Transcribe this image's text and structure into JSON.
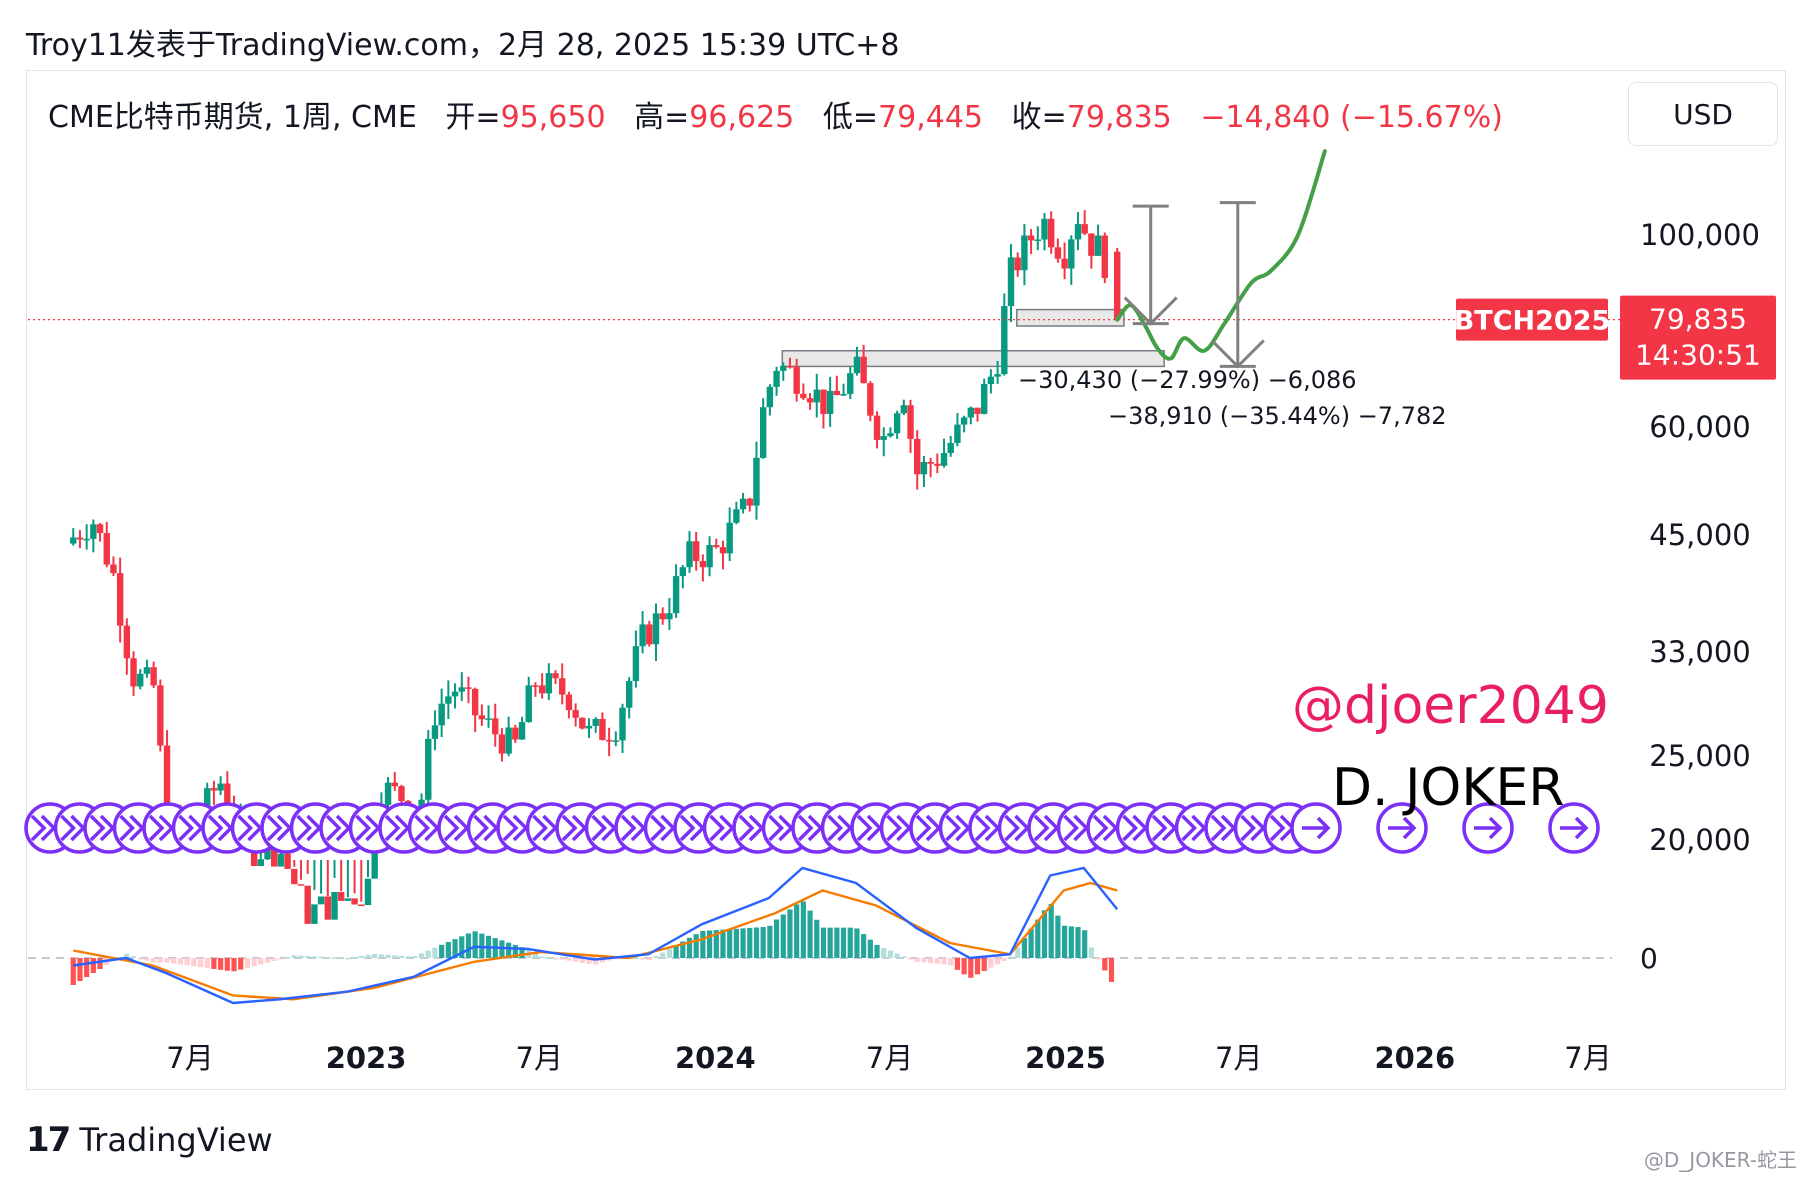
{
  "header": {
    "text": "Troy11发表于TradingView.com，2月 28, 2025 15:39 UTC+8"
  },
  "legend": {
    "symbol": "CME比特币期货, 1周, CME",
    "open_label": "开=",
    "open_value": "95,650",
    "high_label": "高=",
    "high_value": "96,625",
    "low_label": "低=",
    "low_value": "79,445",
    "close_label": "收=",
    "close_value": "79,835",
    "change": "−14,840 (−15.67%)"
  },
  "currency": "USD",
  "price_tag": {
    "symbol": "BTCH2025",
    "price": "79,835",
    "countdown": "14:30:51"
  },
  "annotations": {
    "measure1": "−30,430 (−27.99%) −6,086",
    "measure2": "−38,910 (−35.44%) −7,782"
  },
  "watermarks": {
    "user": "@djoer2049",
    "brand": "D. JOKER",
    "bottom": "@D_JOKER-蛇王"
  },
  "footer": {
    "logo_mark": "17",
    "logo_text": "TradingView"
  },
  "colors": {
    "up": "#089981",
    "down": "#f23645",
    "macd": "#2962ff",
    "signal": "#f57c00",
    "projection": "#43a047",
    "arrow": "#808080",
    "marker": "#7b2ff7",
    "zone": "#d1d4dc"
  },
  "chart_data": {
    "type": "candlestick",
    "y_scale": "log",
    "ylim": [
      17000,
      135000
    ],
    "y_ticks": [
      {
        "value": 100000,
        "label": "100,000"
      },
      {
        "value": 60000,
        "label": "60,000"
      },
      {
        "value": 45000,
        "label": "45,000"
      },
      {
        "value": 33000,
        "label": "33,000"
      },
      {
        "value": 25000,
        "label": "25,000"
      },
      {
        "value": 20000,
        "label": "20,000"
      }
    ],
    "x_ticks": [
      {
        "date": "2022-07-01",
        "label": "7月",
        "bold": false
      },
      {
        "date": "2023-01-01",
        "label": "2023",
        "bold": true
      },
      {
        "date": "2023-07-01",
        "label": "7月",
        "bold": false
      },
      {
        "date": "2024-01-01",
        "label": "2024",
        "bold": true
      },
      {
        "date": "2024-07-01",
        "label": "7月",
        "bold": false
      },
      {
        "date": "2025-01-01",
        "label": "2025",
        "bold": true
      },
      {
        "date": "2025-07-01",
        "label": "7月",
        "bold": false
      },
      {
        "date": "2026-01-01",
        "label": "2026",
        "bold": true
      },
      {
        "date": "2026-07-01",
        "label": "7月",
        "bold": false
      }
    ],
    "price_path": [
      [
        "2022-03-01",
        44000
      ],
      [
        "2022-03-28",
        47000
      ],
      [
        "2022-04-18",
        41000
      ],
      [
        "2022-05-09",
        31000
      ],
      [
        "2022-06-01",
        30000
      ],
      [
        "2022-06-13",
        21000
      ],
      [
        "2022-07-11",
        20500
      ],
      [
        "2022-08-08",
        23500
      ],
      [
        "2022-09-05",
        19500
      ],
      [
        "2022-10-10",
        19500
      ],
      [
        "2022-11-07",
        16500
      ],
      [
        "2022-12-12",
        17000
      ],
      [
        "2023-01-09",
        17500
      ],
      [
        "2023-01-23",
        23000
      ],
      [
        "2023-03-06",
        22000
      ],
      [
        "2023-03-20",
        28000
      ],
      [
        "2023-04-10",
        30000
      ],
      [
        "2023-05-08",
        27500
      ],
      [
        "2023-06-12",
        25500
      ],
      [
        "2023-07-03",
        30500
      ],
      [
        "2023-08-07",
        29500
      ],
      [
        "2023-08-28",
        26500
      ],
      [
        "2023-09-25",
        27000
      ],
      [
        "2023-10-23",
        34000
      ],
      [
        "2023-11-20",
        37500
      ],
      [
        "2023-12-11",
        42500
      ],
      [
        "2024-01-08",
        43000
      ],
      [
        "2024-02-12",
        49000
      ],
      [
        "2024-02-26",
        62000
      ],
      [
        "2024-03-11",
        71000
      ],
      [
        "2024-04-08",
        68000
      ],
      [
        "2024-05-06",
        63000
      ],
      [
        "2024-06-03",
        70000
      ],
      [
        "2024-07-01",
        58000
      ],
      [
        "2024-07-22",
        67000
      ],
      [
        "2024-08-05",
        53000
      ],
      [
        "2024-09-02",
        56000
      ],
      [
        "2024-10-07",
        63000
      ],
      [
        "2024-10-28",
        71000
      ],
      [
        "2024-11-11",
        90000
      ],
      [
        "2024-12-02",
        99000
      ],
      [
        "2024-12-16",
        104000
      ],
      [
        "2025-01-06",
        95000
      ],
      [
        "2025-01-20",
        106000
      ],
      [
        "2025-02-03",
        98000
      ],
      [
        "2025-02-17",
        95650
      ],
      [
        "2025-02-24",
        79835
      ]
    ],
    "last_bar": {
      "open": 95650,
      "high": 96625,
      "low": 79445,
      "close": 79835
    },
    "zones": [
      {
        "from": "2024-11-11",
        "to": "2025-03-03",
        "low": 78500,
        "high": 82000
      },
      {
        "from": "2024-03-11",
        "to": "2025-04-14",
        "low": 70500,
        "high": 73500
      }
    ],
    "projection": [
      [
        "2025-02-24",
        79835
      ],
      [
        "2025-03-10",
        83000
      ],
      [
        "2025-03-24",
        79000
      ],
      [
        "2025-04-07",
        74000
      ],
      [
        "2025-04-21",
        72000
      ],
      [
        "2025-05-05",
        76000
      ],
      [
        "2025-05-26",
        73500
      ],
      [
        "2025-06-16",
        79000
      ],
      [
        "2025-07-14",
        88000
      ],
      [
        "2025-08-04",
        91000
      ],
      [
        "2025-09-01",
        100000
      ],
      [
        "2025-09-29",
        125000
      ]
    ],
    "arrows": [
      {
        "date": "2025-03-31",
        "from": 108000,
        "to": 79000
      },
      {
        "date": "2025-06-30",
        "from": 109000,
        "to": 70500
      }
    ],
    "macd": {
      "zero_label": "0",
      "macd": [
        [
          "2022-03-01",
          -1
        ],
        [
          "2022-04-25",
          0
        ],
        [
          "2022-06-06",
          -2
        ],
        [
          "2022-08-15",
          -6
        ],
        [
          "2022-10-03",
          -5.5
        ],
        [
          "2022-12-12",
          -4.5
        ],
        [
          "2023-02-20",
          -2.5
        ],
        [
          "2023-04-24",
          1.5
        ],
        [
          "2023-06-19",
          1.2
        ],
        [
          "2023-08-28",
          -0.2
        ],
        [
          "2023-10-23",
          0.5
        ],
        [
          "2023-12-18",
          4.5
        ],
        [
          "2024-02-26",
          8
        ],
        [
          "2024-04-01",
          12
        ],
        [
          "2024-05-27",
          10
        ],
        [
          "2024-07-29",
          4
        ],
        [
          "2024-09-23",
          0
        ],
        [
          "2024-11-04",
          0.5
        ],
        [
          "2024-12-16",
          11
        ],
        [
          "2025-01-20",
          12
        ],
        [
          "2025-02-24",
          6.5
        ]
      ],
      "signal": [
        [
          "2022-03-01",
          1
        ],
        [
          "2022-05-23",
          -1
        ],
        [
          "2022-08-15",
          -5
        ],
        [
          "2022-10-17",
          -5.5
        ],
        [
          "2023-01-09",
          -4
        ],
        [
          "2023-04-24",
          -0.5
        ],
        [
          "2023-07-03",
          0.8
        ],
        [
          "2023-10-02",
          0
        ],
        [
          "2023-12-18",
          2.5
        ],
        [
          "2024-03-04",
          6
        ],
        [
          "2024-04-22",
          9
        ],
        [
          "2024-06-17",
          7
        ],
        [
          "2024-09-02",
          2
        ],
        [
          "2024-11-04",
          0.5
        ],
        [
          "2024-12-30",
          9
        ],
        [
          "2025-01-27",
          10
        ],
        [
          "2025-02-24",
          9
        ]
      ]
    }
  }
}
